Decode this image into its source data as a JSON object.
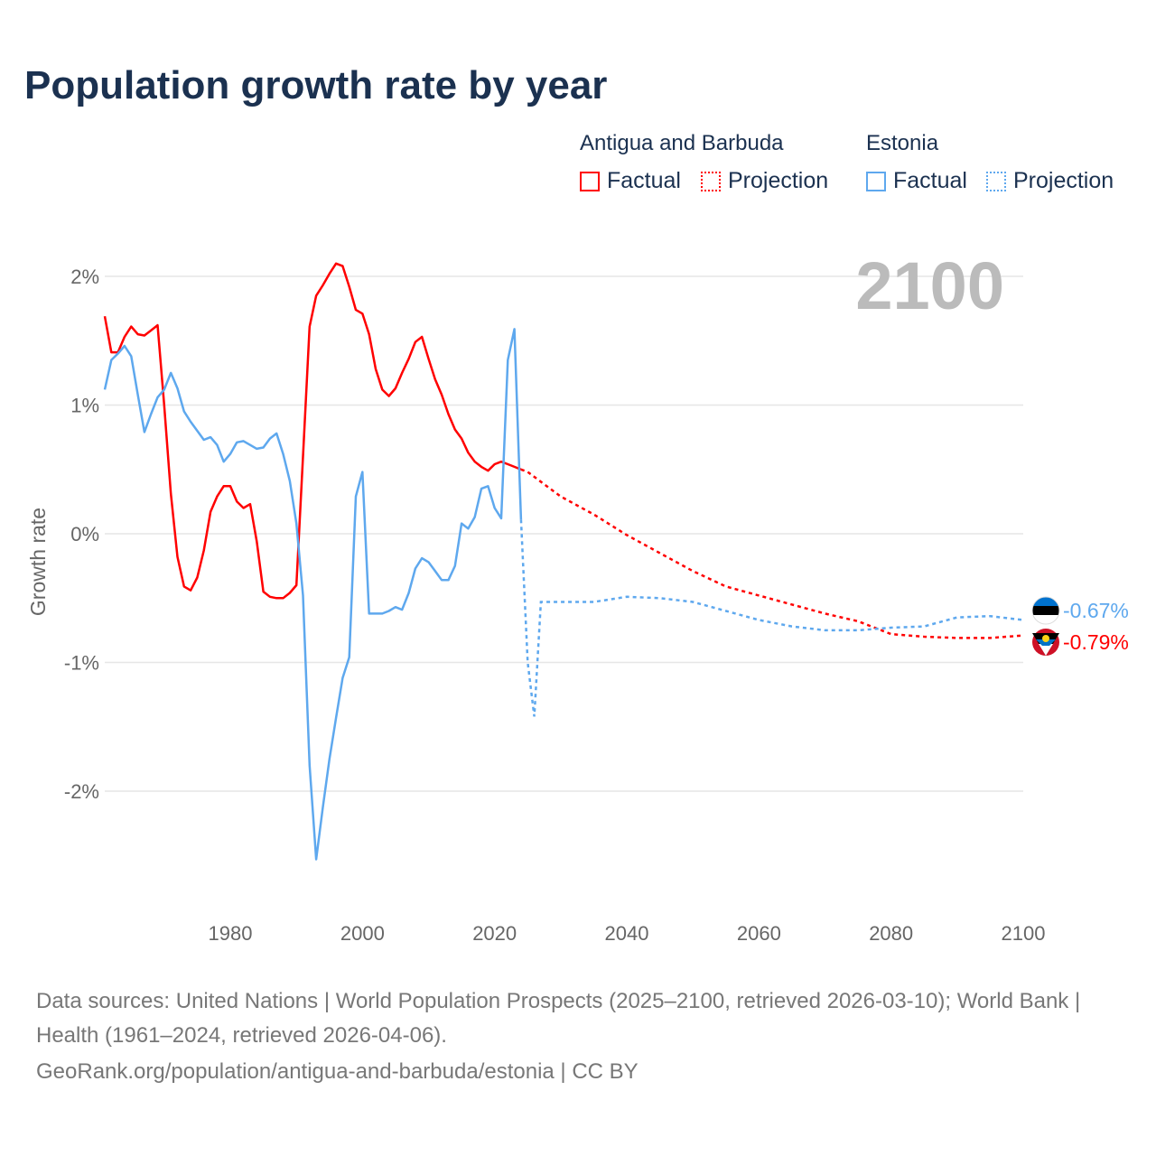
{
  "title": "Population growth rate by year",
  "legend": {
    "groups": [
      {
        "name": "Antigua and Barbuda",
        "color": "#ff0000",
        "factual": "Factual",
        "projection": "Projection"
      },
      {
        "name": "Estonia",
        "color": "#5ea8ee",
        "factual": "Factual",
        "projection": "Projection"
      }
    ]
  },
  "chart_data": {
    "type": "line",
    "title": "Population growth rate by year",
    "xlabel": "",
    "ylabel": "Growth rate",
    "xlim": [
      1961,
      2100
    ],
    "ylim": [
      -3,
      2.5
    ],
    "x_ticks": [
      "1980",
      "2000",
      "2020",
      "2040",
      "2060",
      "2080",
      "2100"
    ],
    "x_tick_values": [
      1980,
      2000,
      2020,
      2040,
      2060,
      2080,
      2100
    ],
    "y_ticks": [
      "2%",
      "1%",
      "0%",
      "-1%",
      "-2%"
    ],
    "y_tick_values": [
      2,
      1,
      0,
      -1,
      -2
    ],
    "year_label": "2100",
    "grid": true,
    "series": [
      {
        "name": "Antigua and Barbuda",
        "color": "#ff0000",
        "end_label": "-0.79%",
        "factual": {
          "x": [
            1961,
            1962,
            1963,
            1964,
            1965,
            1966,
            1967,
            1968,
            1969,
            1970,
            1971,
            1972,
            1973,
            1974,
            1975,
            1976,
            1977,
            1978,
            1979,
            1980,
            1981,
            1982,
            1983,
            1984,
            1985,
            1986,
            1987,
            1988,
            1989,
            1990,
            1991,
            1992,
            1993,
            1994,
            1995,
            1996,
            1997,
            1998,
            1999,
            2000,
            2001,
            2002,
            2003,
            2004,
            2005,
            2006,
            2007,
            2008,
            2009,
            2010,
            2011,
            2012,
            2013,
            2014,
            2015,
            2016,
            2017,
            2018,
            2019,
            2020,
            2021,
            2022,
            2023,
            2024
          ],
          "y": [
            1.69,
            1.41,
            1.41,
            1.53,
            1.61,
            1.55,
            1.54,
            1.58,
            1.62,
            1.0,
            0.31,
            -0.18,
            -0.41,
            -0.44,
            -0.34,
            -0.13,
            0.17,
            0.29,
            0.37,
            0.37,
            0.25,
            0.2,
            0.23,
            -0.06,
            -0.45,
            -0.49,
            -0.5,
            -0.5,
            -0.46,
            -0.4,
            0.6,
            1.61,
            1.85,
            1.93,
            2.02,
            2.1,
            2.08,
            1.92,
            1.74,
            1.71,
            1.55,
            1.28,
            1.12,
            1.07,
            1.13,
            1.25,
            1.36,
            1.49,
            1.53,
            1.36,
            1.2,
            1.08,
            0.93,
            0.81,
            0.74,
            0.63,
            0.56,
            0.52,
            0.49,
            0.54,
            0.56,
            0.54,
            0.52,
            0.5
          ]
        },
        "projection": {
          "x": [
            2024,
            2025,
            2030,
            2035,
            2040,
            2045,
            2050,
            2055,
            2060,
            2065,
            2070,
            2075,
            2080,
            2085,
            2090,
            2095,
            2100
          ],
          "y": [
            0.5,
            0.48,
            0.29,
            0.15,
            -0.01,
            -0.15,
            -0.29,
            -0.41,
            -0.48,
            -0.55,
            -0.62,
            -0.68,
            -0.78,
            -0.8,
            -0.81,
            -0.81,
            -0.79
          ]
        }
      },
      {
        "name": "Estonia",
        "color": "#5ea8ee",
        "end_label": "-0.67%",
        "factual": {
          "x": [
            1961,
            1962,
            1963,
            1964,
            1965,
            1966,
            1967,
            1968,
            1969,
            1970,
            1971,
            1972,
            1973,
            1974,
            1975,
            1976,
            1977,
            1978,
            1979,
            1980,
            1981,
            1982,
            1983,
            1984,
            1985,
            1986,
            1987,
            1988,
            1989,
            1990,
            1991,
            1992,
            1993,
            1994,
            1995,
            1996,
            1997,
            1998,
            1999,
            2000,
            2001,
            2002,
            2003,
            2004,
            2005,
            2006,
            2007,
            2008,
            2009,
            2010,
            2011,
            2012,
            2013,
            2014,
            2015,
            2016,
            2017,
            2018,
            2019,
            2020,
            2021,
            2022,
            2023,
            2024
          ],
          "y": [
            1.12,
            1.35,
            1.4,
            1.46,
            1.38,
            1.08,
            0.79,
            0.93,
            1.06,
            1.12,
            1.25,
            1.13,
            0.95,
            0.87,
            0.8,
            0.73,
            0.75,
            0.69,
            0.56,
            0.62,
            0.71,
            0.72,
            0.69,
            0.66,
            0.67,
            0.74,
            0.78,
            0.62,
            0.41,
            0.08,
            -0.48,
            -1.8,
            -2.53,
            -2.13,
            -1.75,
            -1.43,
            -1.12,
            -0.96,
            0.29,
            0.48,
            -0.62,
            -0.62,
            -0.62,
            -0.6,
            -0.57,
            -0.59,
            -0.46,
            -0.27,
            -0.19,
            -0.22,
            -0.29,
            -0.36,
            -0.36,
            -0.25,
            0.08,
            0.04,
            0.13,
            0.35,
            0.37,
            0.2,
            0.12,
            1.35,
            1.59,
            0.11
          ]
        },
        "projection": {
          "x": [
            2024,
            2025,
            2026,
            2027,
            2030,
            2035,
            2040,
            2045,
            2050,
            2055,
            2060,
            2065,
            2070,
            2075,
            2080,
            2085,
            2090,
            2095,
            2100
          ],
          "y": [
            0.11,
            -1.0,
            -1.42,
            -0.53,
            -0.53,
            -0.53,
            -0.49,
            -0.5,
            -0.53,
            -0.6,
            -0.67,
            -0.72,
            -0.75,
            -0.75,
            -0.73,
            -0.72,
            -0.65,
            -0.64,
            -0.67
          ]
        }
      }
    ]
  },
  "footer": {
    "sources": "Data sources: United Nations | World Population Prospects (2025–2100, retrieved 2026-03-10); World Bank | Health (1961–2024, retrieved 2026-04-06).",
    "credit": "GeoRank.org/population/antigua-and-barbuda/estonia | CC BY"
  }
}
